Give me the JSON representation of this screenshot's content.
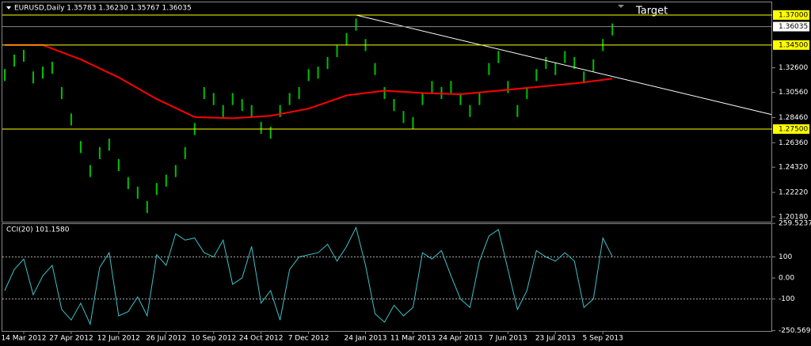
{
  "chart_data": [
    {
      "type": "ohlc",
      "title": "EURUSD,Daily  1.35783 1.36230 1.35767 1.36035",
      "color": "#00c000",
      "categories": [
        null,
        null,
        "14 Mar 2012",
        null,
        null,
        null,
        null,
        "27 Apr 2012",
        null,
        null,
        null,
        null,
        "12 Jun 2012",
        null,
        null,
        null,
        null,
        "26 Jul 2012",
        null,
        null,
        null,
        null,
        "10 Sep 2012",
        null,
        null,
        null,
        null,
        "24 Oct 2012",
        null,
        null,
        null,
        null,
        "7 Dec 2012",
        null,
        null,
        null,
        null,
        null,
        "24 Jan 2013",
        null,
        null,
        null,
        null,
        "11 Mar 2013",
        null,
        null,
        null,
        null,
        "24 Apr 2013",
        null,
        null,
        null,
        null,
        "7 Jun 2013",
        null,
        null,
        null,
        null,
        "23 Jul 2013",
        null,
        null,
        null,
        null,
        "5 Sep 2013",
        null
      ],
      "high": [
        1.325,
        1.337,
        1.341,
        1.323,
        1.327,
        1.331,
        1.31,
        1.288,
        1.265,
        1.245,
        1.26,
        1.267,
        1.25,
        1.235,
        1.227,
        1.215,
        1.23,
        1.237,
        1.245,
        1.26,
        1.28,
        1.31,
        1.305,
        1.295,
        1.305,
        1.3,
        1.295,
        1.281,
        1.277,
        1.295,
        1.305,
        1.31,
        1.325,
        1.327,
        1.335,
        1.345,
        1.355,
        1.367,
        1.35,
        1.33,
        1.31,
        1.3,
        1.29,
        1.285,
        1.305,
        1.315,
        1.31,
        1.315,
        1.305,
        1.295,
        1.305,
        1.33,
        1.34,
        1.315,
        1.295,
        1.31,
        1.325,
        1.335,
        1.33,
        1.34,
        1.335,
        1.323,
        1.333,
        1.35,
        1.363
      ],
      "low": [
        1.315,
        1.327,
        1.331,
        1.313,
        1.317,
        1.321,
        1.3,
        1.278,
        1.255,
        1.235,
        1.25,
        1.257,
        1.24,
        1.225,
        1.217,
        1.205,
        1.22,
        1.227,
        1.235,
        1.25,
        1.27,
        1.3,
        1.295,
        1.285,
        1.295,
        1.29,
        1.285,
        1.271,
        1.267,
        1.285,
        1.295,
        1.3,
        1.315,
        1.317,
        1.325,
        1.335,
        1.345,
        1.357,
        1.34,
        1.32,
        1.3,
        1.29,
        1.28,
        1.275,
        1.295,
        1.305,
        1.3,
        1.305,
        1.295,
        1.285,
        1.295,
        1.32,
        1.33,
        1.305,
        1.285,
        1.3,
        1.315,
        1.325,
        1.32,
        1.33,
        1.325,
        1.313,
        1.323,
        1.34,
        1.353
      ],
      "ma": {
        "color": "#ff0000",
        "x": [
          0,
          4,
          8,
          12,
          16,
          20,
          24,
          28,
          32,
          36,
          40,
          44,
          48,
          52,
          56,
          60,
          64
        ],
        "values": [
          1.345,
          1.345,
          1.333,
          1.318,
          1.3,
          1.285,
          1.284,
          1.286,
          1.292,
          1.303,
          1.307,
          1.305,
          1.304,
          1.307,
          1.31,
          1.313,
          1.317
        ]
      },
      "trendline": {
        "color": "#ffffff",
        "x": [
          37,
          80.75
        ],
        "values": [
          1.37,
          1.2871
        ]
      },
      "annotation": "Target",
      "levels": [
        {
          "value": 1.37,
          "label": "1.37000"
        },
        {
          "value": 1.345,
          "label": "1.34500"
        },
        {
          "value": 1.275,
          "label": "1.27500"
        }
      ],
      "level_color": "#ffff00",
      "current": {
        "value": 1.36035,
        "label": "1.36035"
      },
      "xlim": [
        0,
        80.75
      ],
      "ylim": [
        1.1978,
        1.3746
      ],
      "yticks": [
        {
          "value": 1.326,
          "label": "1.32600"
        },
        {
          "value": 1.3056,
          "label": "1.30560"
        },
        {
          "value": 1.2846,
          "label": "1.28460"
        },
        {
          "value": 1.2636,
          "label": "1.26360"
        },
        {
          "value": 1.2432,
          "label": "1.24320"
        },
        {
          "value": 1.2222,
          "label": "1.22220"
        },
        {
          "value": 1.2018,
          "label": "1.20180"
        }
      ]
    },
    {
      "type": "line",
      "title": "CCI(20) 101.1580",
      "color": "#3fc1c9",
      "values": [
        -60,
        40,
        90,
        -80,
        10,
        60,
        -150,
        -200,
        -120,
        -220,
        50,
        120,
        -180,
        -160,
        -90,
        -180,
        110,
        60,
        210,
        180,
        190,
        120,
        100,
        180,
        -30,
        0,
        150,
        -120,
        -60,
        -200,
        40,
        100,
        110,
        120,
        160,
        80,
        150,
        240,
        60,
        -170,
        -210,
        -130,
        -180,
        -140,
        120,
        90,
        130,
        10,
        -100,
        -140,
        80,
        200,
        230,
        40,
        -150,
        -60,
        130,
        100,
        80,
        120,
        80,
        -140,
        -100,
        190,
        101.158
      ],
      "levels": [
        100,
        -100
      ],
      "ylim": [
        -252,
        260
      ],
      "yticks": [
        259.5237,
        100,
        {
          "value": 0,
          "label": "0.00"
        },
        -100,
        -250.569
      ]
    }
  ]
}
